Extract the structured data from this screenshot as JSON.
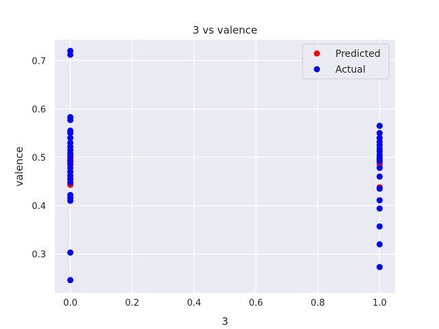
{
  "chart_data": {
    "type": "scatter",
    "title": "3 vs valence",
    "xlabel": "3",
    "ylabel": "valence",
    "xlim": [
      -0.05,
      1.05
    ],
    "ylim": [
      0.22,
      0.743
    ],
    "xticks": [
      "0.0",
      "0.2",
      "0.4",
      "0.6",
      "0.8",
      "1.0"
    ],
    "yticks": [
      "0.3",
      "0.4",
      "0.5",
      "0.6",
      "0.7"
    ],
    "grid": true,
    "legend_position": "top-right",
    "series": [
      {
        "name": "Predicted",
        "color": "#ff0000",
        "points": [
          [
            0,
            0.505
          ],
          [
            0,
            0.5
          ],
          [
            0,
            0.495
          ],
          [
            0,
            0.49
          ],
          [
            0,
            0.485
          ],
          [
            0,
            0.47
          ],
          [
            0,
            0.455
          ],
          [
            0,
            0.443
          ],
          [
            1,
            0.5
          ],
          [
            1,
            0.495
          ],
          [
            1,
            0.49
          ],
          [
            1,
            0.485
          ],
          [
            1,
            0.438
          ]
        ]
      },
      {
        "name": "Actual",
        "color": "#0000ff",
        "points": [
          [
            0,
            0.72
          ],
          [
            0,
            0.712
          ],
          [
            0,
            0.583
          ],
          [
            0,
            0.577
          ],
          [
            0,
            0.555
          ],
          [
            0,
            0.55
          ],
          [
            0,
            0.54
          ],
          [
            0,
            0.53
          ],
          [
            0,
            0.522
          ],
          [
            0,
            0.515
          ],
          [
            0,
            0.508
          ],
          [
            0,
            0.5
          ],
          [
            0,
            0.493
          ],
          [
            0,
            0.486
          ],
          [
            0,
            0.478
          ],
          [
            0,
            0.47
          ],
          [
            0,
            0.462
          ],
          [
            0,
            0.455
          ],
          [
            0,
            0.448
          ],
          [
            0,
            0.422
          ],
          [
            0,
            0.416
          ],
          [
            0,
            0.41
          ],
          [
            0,
            0.303
          ],
          [
            0,
            0.246
          ],
          [
            1,
            0.565
          ],
          [
            1,
            0.55
          ],
          [
            1,
            0.54
          ],
          [
            1,
            0.532
          ],
          [
            1,
            0.525
          ],
          [
            1,
            0.518
          ],
          [
            1,
            0.512
          ],
          [
            1,
            0.505
          ],
          [
            1,
            0.498
          ],
          [
            1,
            0.492
          ],
          [
            1,
            0.478
          ],
          [
            1,
            0.46
          ],
          [
            1,
            0.435
          ],
          [
            1,
            0.411
          ],
          [
            1,
            0.394
          ],
          [
            1,
            0.357
          ],
          [
            1,
            0.32
          ],
          [
            1,
            0.273
          ]
        ]
      }
    ]
  }
}
